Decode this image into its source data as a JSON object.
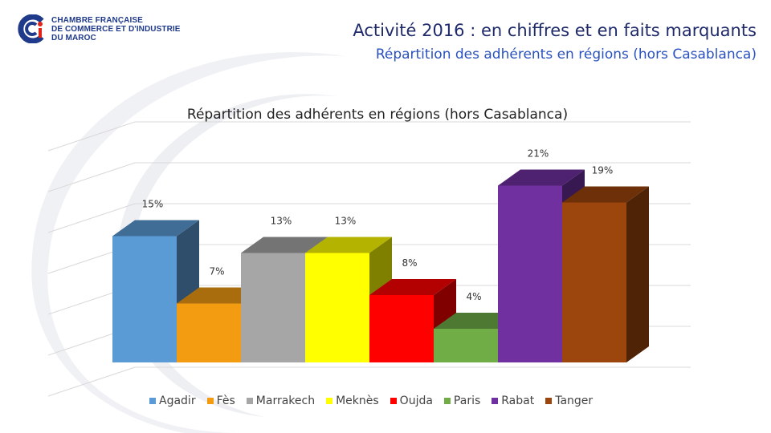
{
  "header": {
    "logo_lines": [
      "CHAMBRE FRANÇAISE",
      "DE COMMERCE ET D'INDUSTRIE",
      "DU MAROC"
    ],
    "title": "Activité 2016 : en chiffres et en faits marquants",
    "subtitle": "Répartition des adhérents en régions (hors Casablanca)"
  },
  "colors": {
    "title": "#1f2a6b",
    "subtitle": "#2a52be",
    "logo_blue": "#1f3a8a",
    "logo_red": "#e2231a"
  },
  "chart_data": {
    "type": "bar",
    "style": "3d",
    "title": "Répartition des adhérents en régions (hors Casablanca)",
    "categories": [
      "Agadir",
      "Fès",
      "Marrakech",
      "Meknès",
      "Oujda",
      "Paris",
      "Rabat",
      "Tanger"
    ],
    "values": [
      15,
      7,
      13,
      13,
      8,
      4,
      21,
      19
    ],
    "data_labels": [
      "15%",
      "7%",
      "13%",
      "13%",
      "8%",
      "4%",
      "21%",
      "19%"
    ],
    "colors": [
      "#5b9bd5",
      "#f39c12",
      "#a6a6a6",
      "#ffff00",
      "#ff0000",
      "#70ad47",
      "#7030a0",
      "#9c450c"
    ],
    "ylim": [
      0,
      25
    ],
    "grid": true,
    "legend": "bottom"
  }
}
